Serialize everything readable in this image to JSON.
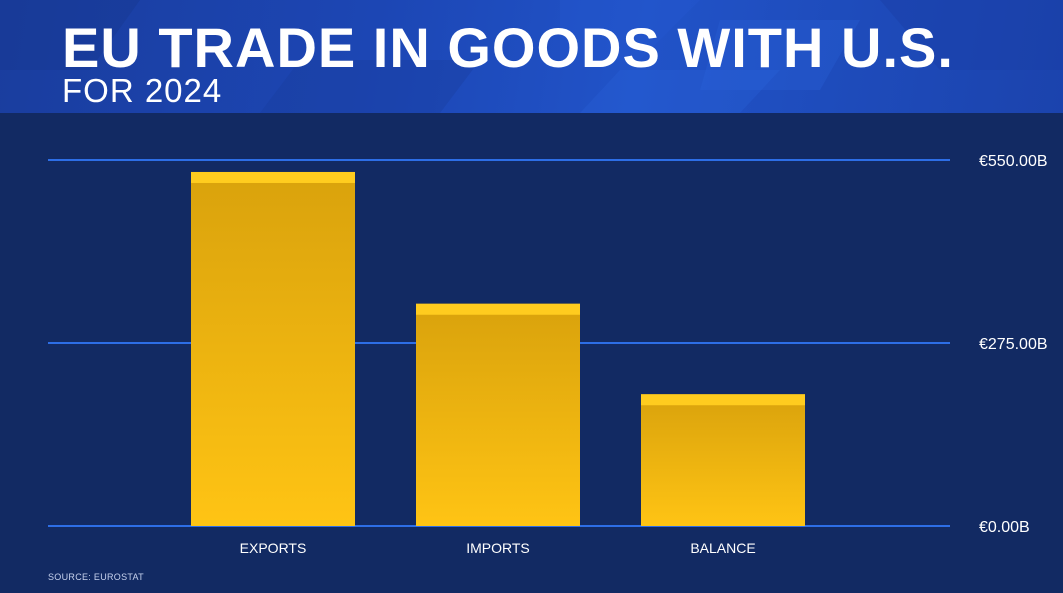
{
  "header": {
    "title": "EU TRADE IN GOODS WITH U.S.",
    "subtitle": "FOR 2024"
  },
  "source": "SOURCE: EUROSTAT",
  "colors": {
    "background": "#122a63",
    "header": "#1c46b4",
    "bar": "#f1b40f",
    "bar_top": "#ffcc1f",
    "gridline": "#2d6ee6",
    "text": "#ffffff"
  },
  "chart_data": {
    "type": "bar",
    "categories": [
      "EXPORTS",
      "IMPORTS",
      "BALANCE"
    ],
    "values": [
      532,
      334,
      198
    ],
    "ylim": [
      0,
      550
    ],
    "yticks": [
      0,
      275,
      550
    ],
    "ytick_labels": [
      "€0.00B",
      "€275.00B",
      "€550.00B"
    ],
    "grid": true,
    "legend": "none"
  }
}
